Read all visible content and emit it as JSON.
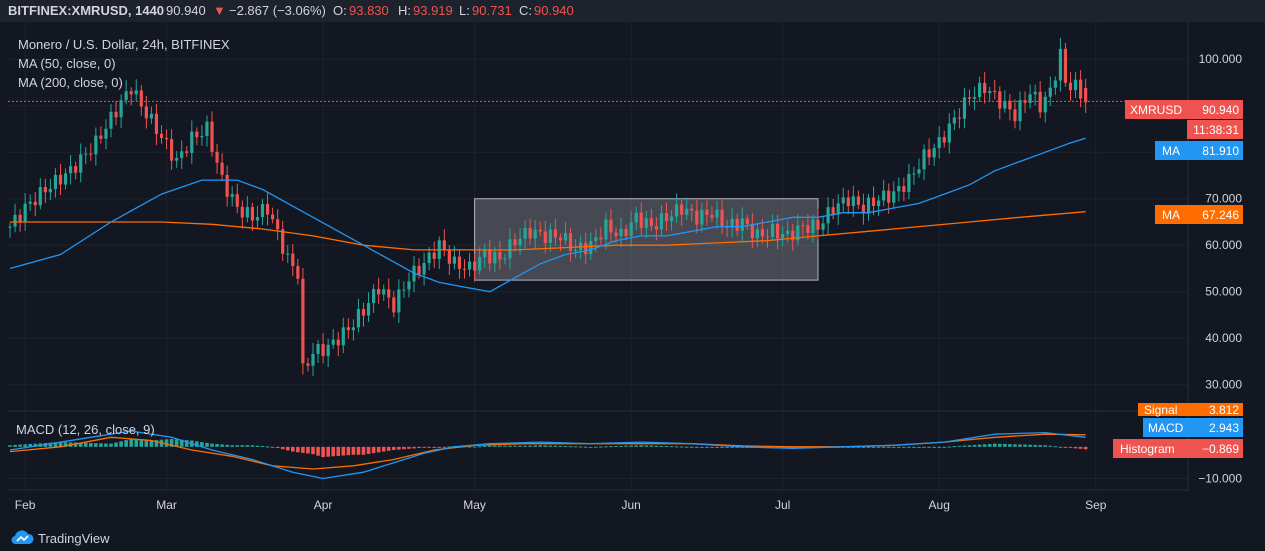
{
  "header": {
    "symbol": "BITFINEX:XMRUSD, 1440",
    "last": "90.940",
    "change": "−2.867 (−3.06%)",
    "o_label": "O:",
    "o": "93.830",
    "h_label": "H:",
    "h": "93.919",
    "l_label": "L:",
    "l": "90.731",
    "c_label": "C:",
    "c": "90.940"
  },
  "legend": {
    "title": "Monero / U.S. Dollar, 24h, BITFINEX",
    "ma50": "MA (50, close, 0)",
    "ma200": "MA (200, close, 0)",
    "macd": "MACD (12, 26, close, 9)"
  },
  "price_tags": {
    "symbol_tag": "XMRUSD",
    "symbol_value": "90.940",
    "timer": "11:38:31",
    "ma_label": "MA",
    "ma50_value": "81.910",
    "ma200_value": "67.246"
  },
  "macd_tags": {
    "signal_label": "Signal",
    "signal_value": "3.812",
    "macd_label": "MACD",
    "macd_value": "2.943",
    "hist_label": "Histogram",
    "hist_value": "−0.869"
  },
  "footer": {
    "brand": "TradingView"
  },
  "colors": {
    "background": "#131722",
    "up": "#26a69a",
    "down": "#ef5350",
    "ma50": "#2196f3",
    "ma200": "#ff6d00",
    "macd_line": "#2196f3",
    "signal_line": "#ff6d00",
    "text": "#d1d4dc"
  },
  "chart_data": [
    {
      "type": "candlestick",
      "title": "Monero / U.S. Dollar, 24h, BITFINEX",
      "x_ticks": [
        "Feb",
        "Mar",
        "Apr",
        "May",
        "Jun",
        "Jul",
        "Aug",
        "Sep"
      ],
      "y_ticks": [
        "30.000",
        "40.000",
        "50.000",
        "60.000",
        "70.000",
        "80.000",
        "90.000",
        "100.000"
      ],
      "ylim": [
        25,
        108
      ],
      "close_path": [
        [
          0,
          64
        ],
        [
          3,
          68
        ],
        [
          7,
          72
        ],
        [
          12,
          76
        ],
        [
          17,
          82
        ],
        [
          21,
          89
        ],
        [
          24,
          94
        ],
        [
          26,
          90
        ],
        [
          29,
          85
        ],
        [
          33,
          78
        ],
        [
          36,
          83
        ],
        [
          39,
          85
        ],
        [
          42,
          74
        ],
        [
          45,
          68
        ],
        [
          48,
          66
        ],
        [
          51,
          68
        ],
        [
          55,
          57
        ],
        [
          57,
          54
        ],
        [
          58,
          33
        ],
        [
          60,
          37
        ],
        [
          63,
          38
        ],
        [
          67,
          42
        ],
        [
          70,
          46
        ],
        [
          73,
          51
        ],
        [
          76,
          47
        ],
        [
          79,
          53
        ],
        [
          82,
          56
        ],
        [
          85,
          60
        ],
        [
          88,
          56
        ],
        [
          91,
          55
        ],
        [
          94,
          58
        ],
        [
          97,
          57
        ],
        [
          100,
          61
        ],
        [
          103,
          63
        ],
        [
          106,
          62
        ],
        [
          109,
          62
        ],
        [
          112,
          59
        ],
        [
          115,
          60
        ],
        [
          118,
          64
        ],
        [
          121,
          62
        ],
        [
          124,
          66
        ],
        [
          127,
          64
        ],
        [
          130,
          66
        ],
        [
          133,
          68
        ],
        [
          136,
          66
        ],
        [
          139,
          67
        ],
        [
          142,
          64
        ],
        [
          145,
          65
        ],
        [
          148,
          62
        ],
        [
          151,
          63
        ],
        [
          154,
          62
        ],
        [
          157,
          64
        ],
        [
          160,
          64
        ],
        [
          163,
          68
        ],
        [
          166,
          70
        ],
        [
          169,
          68
        ],
        [
          172,
          70
        ],
        [
          175,
          71
        ],
        [
          178,
          74
        ],
        [
          181,
          79
        ],
        [
          184,
          82
        ],
        [
          187,
          87
        ],
        [
          190,
          92
        ],
        [
          193,
          94
        ],
        [
          196,
          91
        ],
        [
          199,
          88
        ],
        [
          202,
          93
        ],
        [
          204,
          90
        ],
        [
          206,
          93
        ],
        [
          208,
          101
        ],
        [
          209,
          95
        ],
        [
          211,
          94
        ],
        [
          213,
          91
        ]
      ],
      "ma50": [
        [
          0,
          55
        ],
        [
          10,
          58
        ],
        [
          20,
          65
        ],
        [
          30,
          71
        ],
        [
          38,
          74
        ],
        [
          45,
          74
        ],
        [
          50,
          72
        ],
        [
          55,
          69
        ],
        [
          60,
          66
        ],
        [
          65,
          63
        ],
        [
          70,
          60
        ],
        [
          75,
          57
        ],
        [
          80,
          54
        ],
        [
          85,
          52
        ],
        [
          90,
          51
        ],
        [
          95,
          50
        ],
        [
          100,
          53
        ],
        [
          105,
          56
        ],
        [
          110,
          58
        ],
        [
          115,
          59
        ],
        [
          120,
          61
        ],
        [
          125,
          62
        ],
        [
          130,
          62
        ],
        [
          135,
          63
        ],
        [
          140,
          64
        ],
        [
          145,
          64
        ],
        [
          150,
          65
        ],
        [
          155,
          66
        ],
        [
          160,
          66
        ],
        [
          165,
          67
        ],
        [
          170,
          67
        ],
        [
          175,
          68
        ],
        [
          180,
          69
        ],
        [
          185,
          71
        ],
        [
          190,
          73
        ],
        [
          195,
          76
        ],
        [
          200,
          78
        ],
        [
          205,
          80
        ],
        [
          210,
          82
        ],
        [
          213,
          83
        ]
      ],
      "ma200": [
        [
          0,
          65
        ],
        [
          20,
          65
        ],
        [
          30,
          65
        ],
        [
          40,
          64.5
        ],
        [
          50,
          63.5
        ],
        [
          60,
          62
        ],
        [
          70,
          60
        ],
        [
          80,
          59
        ],
        [
          90,
          59
        ],
        [
          100,
          59
        ],
        [
          110,
          59.5
        ],
        [
          120,
          60
        ],
        [
          130,
          60
        ],
        [
          140,
          60.5
        ],
        [
          150,
          61
        ],
        [
          160,
          62
        ],
        [
          170,
          63
        ],
        [
          180,
          64
        ],
        [
          190,
          65
        ],
        [
          200,
          66
        ],
        [
          213,
          67.2
        ]
      ],
      "range_box": {
        "from_index": 92,
        "to_index": 160,
        "low": 52.5,
        "high": 70
      },
      "last_price": 90.94
    },
    {
      "type": "macd",
      "title": "MACD (12, 26, close, 9)",
      "y_ticks": [
        "−10.000"
      ],
      "ylim": [
        -13,
        11
      ],
      "macd": [
        [
          0,
          -1
        ],
        [
          8,
          1
        ],
        [
          16,
          3
        ],
        [
          24,
          5
        ],
        [
          32,
          3
        ],
        [
          40,
          -1
        ],
        [
          48,
          -4
        ],
        [
          56,
          -8
        ],
        [
          62,
          -10
        ],
        [
          70,
          -8
        ],
        [
          76,
          -5
        ],
        [
          82,
          -2
        ],
        [
          88,
          0
        ],
        [
          95,
          1
        ],
        [
          105,
          1.5
        ],
        [
          115,
          1
        ],
        [
          125,
          1.5
        ],
        [
          135,
          1
        ],
        [
          145,
          0
        ],
        [
          155,
          -0.5
        ],
        [
          165,
          0
        ],
        [
          175,
          0.5
        ],
        [
          185,
          1.5
        ],
        [
          195,
          4
        ],
        [
          205,
          4.5
        ],
        [
          213,
          3
        ]
      ],
      "signal": [
        [
          0,
          -1.5
        ],
        [
          10,
          0
        ],
        [
          20,
          3
        ],
        [
          28,
          2
        ],
        [
          36,
          -1
        ],
        [
          44,
          -3
        ],
        [
          52,
          -6
        ],
        [
          60,
          -7
        ],
        [
          68,
          -6
        ],
        [
          76,
          -4
        ],
        [
          84,
          -1
        ],
        [
          92,
          0.5
        ],
        [
          102,
          1
        ],
        [
          115,
          1
        ],
        [
          125,
          1
        ],
        [
          135,
          1
        ],
        [
          145,
          0.3
        ],
        [
          155,
          0
        ],
        [
          165,
          0
        ],
        [
          175,
          0.5
        ],
        [
          185,
          1.5
        ],
        [
          195,
          3
        ],
        [
          205,
          4
        ],
        [
          213,
          3.8
        ]
      ],
      "histogram_last": -0.869
    }
  ]
}
